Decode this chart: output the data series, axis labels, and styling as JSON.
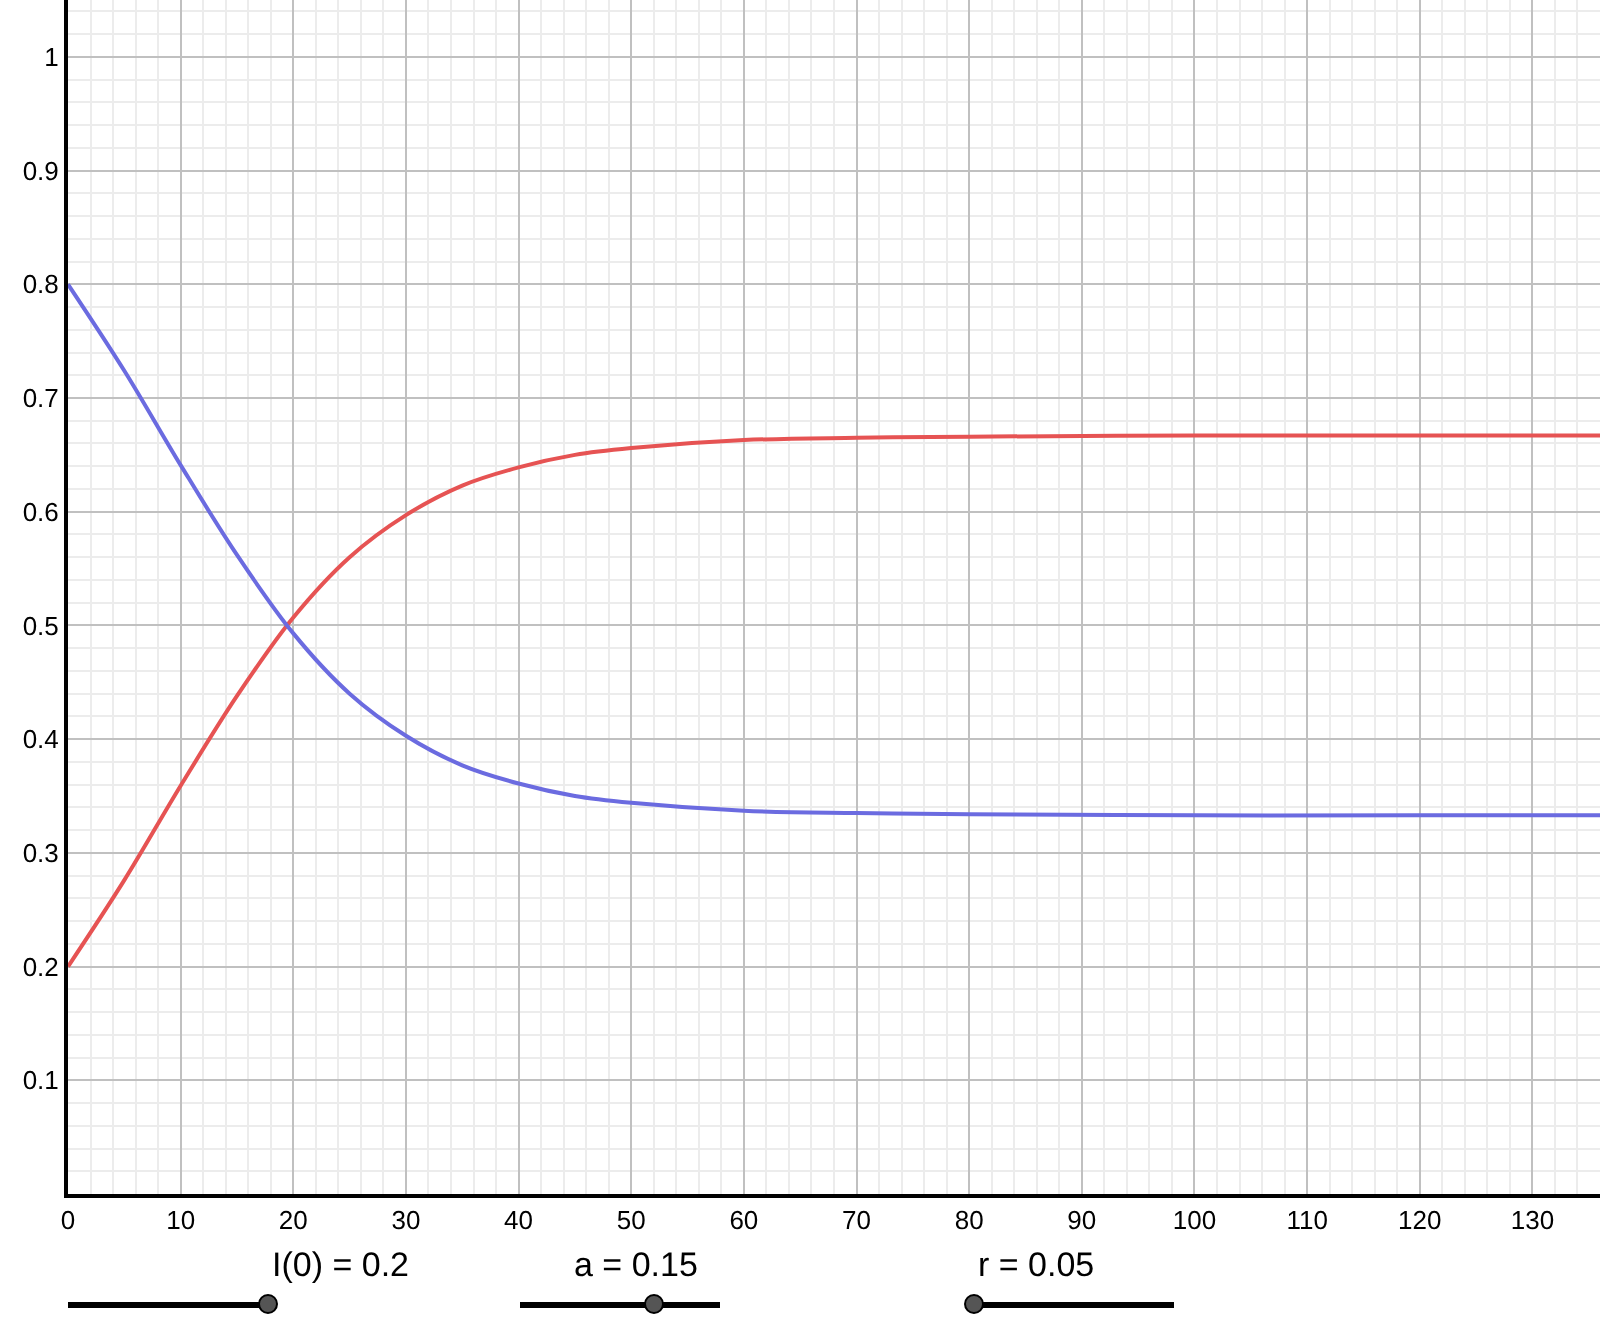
{
  "chart_data": {
    "type": "line",
    "x": [
      0,
      5,
      10,
      15,
      20,
      25,
      30,
      35,
      40,
      45,
      50,
      60,
      70,
      80,
      100,
      120,
      136
    ],
    "series": [
      {
        "color": "#e65353",
        "values": [
          0.2,
          0.276,
          0.359,
          0.438,
          0.507,
          0.56,
          0.597,
          0.623,
          0.639,
          0.65,
          0.656,
          0.663,
          0.665,
          0.666,
          0.667,
          0.667,
          0.667
        ]
      },
      {
        "color": "#6b6be0",
        "values": [
          0.8,
          0.724,
          0.641,
          0.562,
          0.493,
          0.44,
          0.403,
          0.377,
          0.361,
          0.35,
          0.344,
          0.337,
          0.335,
          0.334,
          0.333,
          0.333,
          0.333
        ]
      }
    ],
    "xlim": [
      0,
      136
    ],
    "ylim": [
      0,
      1.05
    ],
    "xticks": [
      0,
      10,
      20,
      30,
      40,
      50,
      60,
      70,
      80,
      90,
      100,
      110,
      120,
      130
    ],
    "yticks": [
      0.1,
      0.2,
      0.3,
      0.4,
      0.5,
      0.6,
      0.7,
      0.8,
      0.9,
      1
    ],
    "grid": true,
    "annotations": [
      "I(0) = 0.2",
      "a = 0.15",
      "r = 0.05"
    ]
  }
}
